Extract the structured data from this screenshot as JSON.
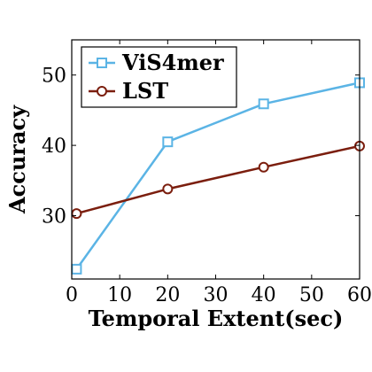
{
  "chart_data": {
    "type": "line",
    "xlabel": "Temporal Extent(sec)",
    "ylabel": "Accuracy",
    "xlim": [
      0,
      60
    ],
    "ylim": [
      21,
      55
    ],
    "xticks": [
      0,
      10,
      20,
      30,
      40,
      50,
      60
    ],
    "yticks": [
      30,
      40,
      50
    ],
    "grid": false,
    "legend_position": "top-left",
    "series": [
      {
        "name": "ViS4mer",
        "color": "#5BB4E5",
        "marker": "square",
        "x": [
          1,
          20,
          40,
          60
        ],
        "y": [
          22.4,
          40.5,
          45.9,
          48.9
        ]
      },
      {
        "name": "LST",
        "color": "#7B1E0E",
        "marker": "circle",
        "x": [
          1,
          20,
          40,
          60
        ],
        "y": [
          30.3,
          33.8,
          36.9,
          39.9
        ]
      }
    ]
  }
}
